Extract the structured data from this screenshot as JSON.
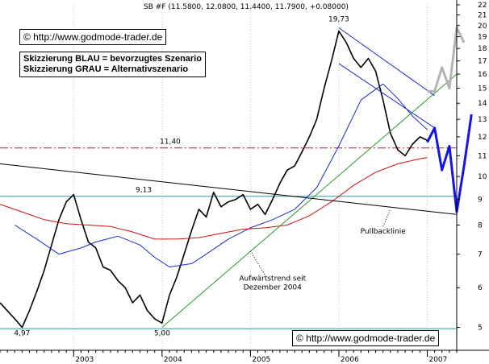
{
  "header": {
    "title": "SB #F (11.5800, 12.0800, 11.4400, 11.7900, +0.08000)"
  },
  "watermarks": [
    {
      "text": "© http://www.godmode-trader.de"
    },
    {
      "text": "© http://www.godmode-trader.de"
    }
  ],
  "legend_lines": [
    "Skizzierung BLAU = bevorzugtes Szenario",
    "Skizzierung GRAU = Alternativszenario"
  ],
  "chart_data": {
    "type": "line",
    "title": "SB #F (11.5800, 12.0800, 11.4400, 11.7900, +0.08000)",
    "y_scale": "log",
    "ylim": [
      4.5,
      22
    ],
    "y_ticks": [
      "5",
      "6",
      "7",
      "8",
      "9",
      "10",
      "11",
      "12",
      "13",
      "14",
      "15",
      "16",
      "17",
      "18",
      "19",
      "20",
      "21",
      "22"
    ],
    "x_ticks": [
      "2003",
      "2004",
      "2005",
      "2006",
      "2007"
    ],
    "xlim": [
      "2002-03",
      "2007-05"
    ],
    "series": [
      {
        "role": "price",
        "color": "#000000",
        "points": [
          [
            "2002-03",
            5.6
          ],
          [
            "2002-05",
            5.2
          ],
          [
            "2002-06",
            5.0
          ],
          [
            "2002-07",
            5.4
          ],
          [
            "2002-08",
            5.9
          ],
          [
            "2002-09",
            6.5
          ],
          [
            "2002-10",
            7.3
          ],
          [
            "2002-11",
            8.2
          ],
          [
            "2002-12",
            8.9
          ],
          [
            "2003-01",
            9.2
          ],
          [
            "2003-02",
            8.2
          ],
          [
            "2003-03",
            7.4
          ],
          [
            "2003-04",
            7.2
          ],
          [
            "2003-05",
            6.6
          ],
          [
            "2003-06",
            6.5
          ],
          [
            "2003-07",
            6.2
          ],
          [
            "2003-08",
            6.0
          ],
          [
            "2003-09",
            5.6
          ],
          [
            "2003-10",
            5.8
          ],
          [
            "2003-11",
            5.4
          ],
          [
            "2003-12",
            5.2
          ],
          [
            "2004-01",
            5.1
          ],
          [
            "2004-02",
            5.8
          ],
          [
            "2004-03",
            6.3
          ],
          [
            "2004-04",
            7.0
          ],
          [
            "2004-05",
            7.8
          ],
          [
            "2004-06",
            8.6
          ],
          [
            "2004-07",
            8.3
          ],
          [
            "2004-08",
            9.3
          ],
          [
            "2004-09",
            8.7
          ],
          [
            "2004-10",
            8.9
          ],
          [
            "2004-11",
            9.0
          ],
          [
            "2004-12",
            9.2
          ],
          [
            "2005-01",
            8.6
          ],
          [
            "2005-02",
            8.8
          ],
          [
            "2005-03",
            8.4
          ],
          [
            "2005-04",
            9.0
          ],
          [
            "2005-05",
            9.7
          ],
          [
            "2005-06",
            10.3
          ],
          [
            "2005-07",
            10.5
          ],
          [
            "2005-08",
            11.2
          ],
          [
            "2005-09",
            12.0
          ],
          [
            "2005-10",
            13.0
          ],
          [
            "2005-11",
            15.0
          ],
          [
            "2005-12",
            17.0
          ],
          [
            "2006-01",
            19.5
          ],
          [
            "2006-02",
            18.5
          ],
          [
            "2006-03",
            17.2
          ],
          [
            "2006-04",
            16.5
          ],
          [
            "2006-05",
            17.2
          ],
          [
            "2006-06",
            16.2
          ],
          [
            "2006-07",
            14.2
          ],
          [
            "2006-08",
            12.2
          ],
          [
            "2006-09",
            11.3
          ],
          [
            "2006-10",
            11.0
          ],
          [
            "2006-11",
            11.6
          ],
          [
            "2006-12",
            12.0
          ],
          [
            "2007-01",
            11.8
          ]
        ]
      },
      {
        "role": "moving-average-blue",
        "color": "#1c2cc8",
        "points": [
          [
            "2002-05",
            8.0
          ],
          [
            "2002-08",
            7.5
          ],
          [
            "2002-11",
            7.0
          ],
          [
            "2003-02",
            7.2
          ],
          [
            "2003-04",
            7.4
          ],
          [
            "2003-07",
            7.6
          ],
          [
            "2003-10",
            7.3
          ],
          [
            "2003-12",
            6.9
          ],
          [
            "2004-02",
            6.6
          ],
          [
            "2004-05",
            6.7
          ],
          [
            "2004-07",
            7.0
          ],
          [
            "2004-10",
            7.5
          ],
          [
            "2005-01",
            7.9
          ],
          [
            "2005-04",
            8.2
          ],
          [
            "2005-07",
            8.6
          ],
          [
            "2005-10",
            9.5
          ],
          [
            "2006-01",
            11.5
          ],
          [
            "2006-04",
            14.2
          ],
          [
            "2006-07",
            15.3
          ],
          [
            "2006-09",
            14.3
          ],
          [
            "2006-11",
            13.2
          ],
          [
            "2007-01",
            12.4
          ]
        ]
      },
      {
        "role": "moving-average-red",
        "color": "#cc1010",
        "points": [
          [
            "2002-03",
            8.8
          ],
          [
            "2002-06",
            8.5
          ],
          [
            "2002-09",
            8.2
          ],
          [
            "2002-12",
            8.05
          ],
          [
            "2003-03",
            8.0
          ],
          [
            "2003-06",
            7.95
          ],
          [
            "2003-09",
            7.75
          ],
          [
            "2003-12",
            7.5
          ],
          [
            "2004-03",
            7.5
          ],
          [
            "2004-06",
            7.55
          ],
          [
            "2004-09",
            7.7
          ],
          [
            "2004-12",
            7.85
          ],
          [
            "2005-03",
            7.9
          ],
          [
            "2005-06",
            8.0
          ],
          [
            "2005-09",
            8.35
          ],
          [
            "2005-12",
            8.9
          ],
          [
            "2006-03",
            9.6
          ],
          [
            "2006-06",
            10.2
          ],
          [
            "2006-09",
            10.6
          ],
          [
            "2006-12",
            10.85
          ],
          [
            "2007-01",
            10.9
          ]
        ]
      },
      {
        "role": "trendline-green",
        "color": "#2d9a2d",
        "points": [
          [
            "2004-01",
            5.0
          ],
          [
            "2007-05",
            16.0
          ]
        ]
      },
      {
        "role": "pullback-line-black",
        "color": "#000000",
        "points": [
          [
            "2002-03",
            10.6
          ],
          [
            "2007-05",
            8.4
          ]
        ]
      },
      {
        "role": "channel-blue-upper",
        "color": "#1c2cc8",
        "points": [
          [
            "2006-01",
            19.8
          ],
          [
            "2007-02",
            14.5
          ]
        ]
      },
      {
        "role": "channel-blue-lower",
        "color": "#1c2cc8",
        "points": [
          [
            "2006-01",
            16.8
          ],
          [
            "2007-02",
            12.5
          ]
        ]
      },
      {
        "role": "scenario-blue",
        "color": "#1414e6",
        "points": [
          [
            "2007-01",
            11.7
          ],
          [
            "2007-02",
            12.5
          ],
          [
            "2007-03",
            10.3
          ],
          [
            "2007-04",
            11.5
          ],
          [
            "2007-05",
            8.5
          ],
          [
            "2007-06",
            10.5
          ],
          [
            "2007-07",
            13.3
          ]
        ]
      },
      {
        "role": "scenario-grey",
        "color": "#b4b4b4",
        "points": [
          [
            "2007-01",
            14.8
          ],
          [
            "2007-02",
            14.8
          ],
          [
            "2007-03",
            16.5
          ],
          [
            "2007-04",
            15.0
          ],
          [
            "2007-05",
            19.8
          ],
          [
            "2007-06",
            18.5
          ]
        ]
      }
    ],
    "levels": [
      {
        "value": 11.4,
        "label": "11,40",
        "color": "#cc1010",
        "style": "dash-dot"
      },
      {
        "value": 9.13,
        "label": "9,13",
        "color": "#2a9a9a",
        "style": "solid"
      },
      {
        "value": 4.97,
        "label": "",
        "color": "#2a9a9a",
        "style": "solid"
      }
    ],
    "annotations": [
      {
        "text": "19,73",
        "x": "2006-01",
        "y": 20.4
      },
      {
        "text": "4,97",
        "x": "2002-06",
        "y": 4.82
      },
      {
        "text": "5,00",
        "x": "2004-01",
        "y": 4.82
      },
      {
        "text": "Aufwärtstrend seit",
        "x": "2005-04",
        "y": 6.2
      },
      {
        "text": "Dezember 2004",
        "x": "2005-04",
        "y": 5.95
      },
      {
        "text": "Pullbacklinie",
        "x": "2006-07",
        "y": 7.7
      }
    ]
  }
}
